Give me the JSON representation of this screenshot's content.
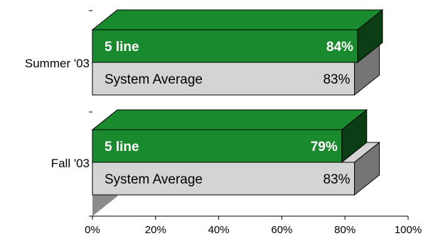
{
  "chart_data": {
    "type": "bar",
    "orientation": "horizontal",
    "three_d": true,
    "categories": [
      "Summer '03",
      "Fall '03"
    ],
    "series": [
      {
        "name": "5 line",
        "values": [
          84,
          79
        ],
        "labels": [
          "84%",
          "79%"
        ],
        "color": "#1a8a2e"
      },
      {
        "name": "System Average",
        "values": [
          83,
          83
        ],
        "labels": [
          "83%",
          "83%"
        ],
        "color": "#d4d4d4"
      }
    ],
    "xlim": [
      0,
      100
    ],
    "xticks": [
      "0%",
      "20%",
      "40%",
      "60%",
      "80%",
      "100%"
    ],
    "grid": false,
    "legend": "none",
    "title": "",
    "xlabel": "",
    "ylabel": ""
  }
}
